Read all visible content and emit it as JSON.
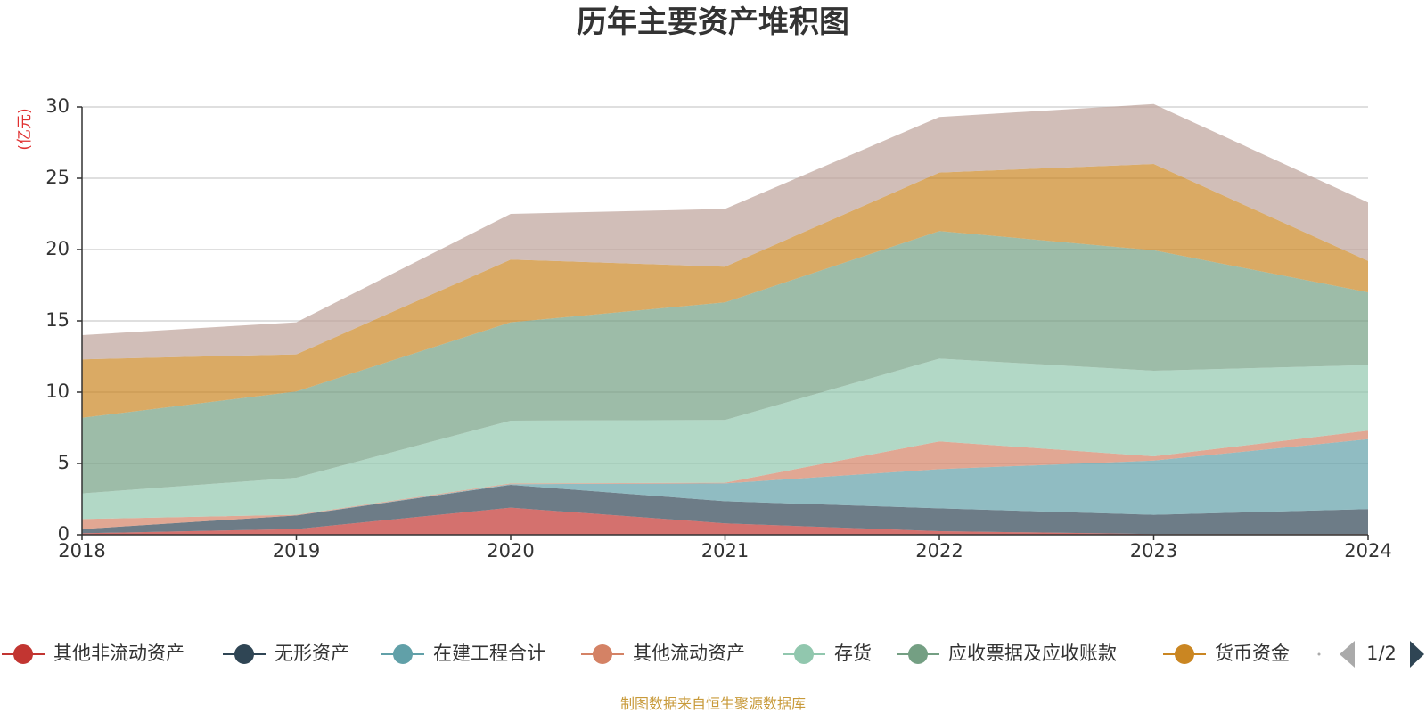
{
  "chart_data": {
    "type": "area",
    "stacked": true,
    "title": "历年主要资产堆积图",
    "ylabel": "(亿元)",
    "xlabel": "",
    "x": [
      "2018",
      "2019",
      "2020",
      "2021",
      "2022",
      "2023",
      "2024"
    ],
    "ylim": [
      0,
      30
    ],
    "yticks": [
      "0",
      "5",
      "10",
      "15",
      "20",
      "25",
      "30"
    ],
    "grid": true,
    "series": [
      {
        "name": "其他非流动资产",
        "color": "#c23531",
        "values": [
          0.1,
          0.4,
          1.9,
          0.8,
          0.25,
          0.05,
          0.05
        ]
      },
      {
        "name": "无形资产",
        "color": "#2f4554",
        "values": [
          0.3,
          0.95,
          1.6,
          1.55,
          1.6,
          1.35,
          1.75
        ]
      },
      {
        "name": "在建工程合计",
        "color": "#61a0a8",
        "values": [
          0.0,
          0.0,
          0.05,
          1.25,
          2.75,
          3.8,
          4.9
        ]
      },
      {
        "name": "其他流动资产",
        "color": "#d48265",
        "values": [
          0.7,
          0.05,
          0.05,
          0.05,
          1.95,
          0.3,
          0.6
        ]
      },
      {
        "name": "存货",
        "color": "#91c7ae",
        "values": [
          1.8,
          2.6,
          4.4,
          4.4,
          5.8,
          6.0,
          4.6
        ]
      },
      {
        "name": "应收票据及应收账款",
        "color": "#749f83",
        "values": [
          5.3,
          6.05,
          6.9,
          8.25,
          8.95,
          8.45,
          5.1
        ]
      },
      {
        "name": "货币资金",
        "color": "#ca8622",
        "values": [
          4.1,
          2.6,
          4.4,
          2.5,
          4.1,
          6.05,
          2.2
        ]
      },
      {
        "name": "",
        "color": "#bda29a",
        "values": [
          1.7,
          2.25,
          3.2,
          4.05,
          3.9,
          4.2,
          4.1
        ]
      }
    ],
    "legend": {
      "position": "bottom",
      "items": [
        "其他非流动资产",
        "无形资产",
        "在建工程合计",
        "其他流动资产",
        "存货",
        "应收票据及应收账款",
        "货币资金"
      ],
      "page": "1/2"
    },
    "source_note": "制图数据来自恒生聚源数据库"
  }
}
